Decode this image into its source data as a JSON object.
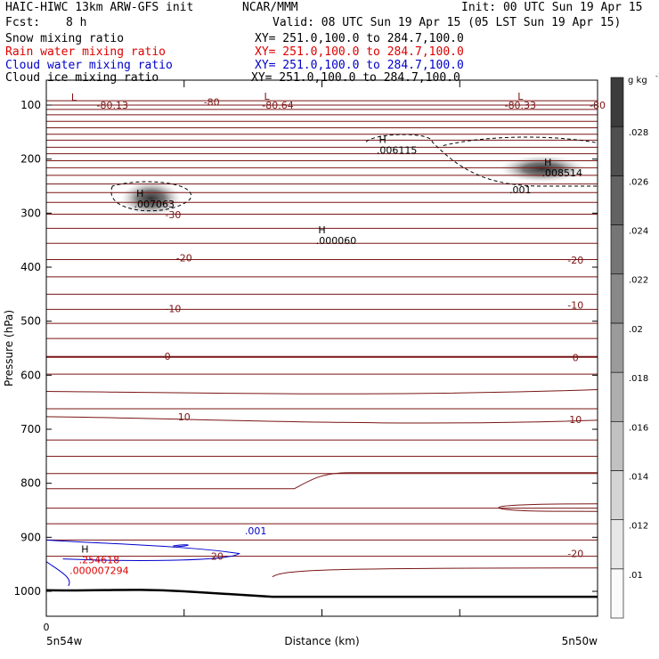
{
  "header": {
    "model": "HAIC-HIWC 13km ARW-GFS init",
    "org": "NCAR/MMM",
    "init": "Init: 00 UTC Sun 19 Apr 15",
    "fcst_label": "Fcst:",
    "fcst_value": "8 h",
    "valid": "Valid: 08 UTC Sun 19 Apr 15 (05 LST Sun 19 Apr 15)"
  },
  "fields": [
    {
      "name": "Snow mixing ratio",
      "xy": "XY= 251.0,100.0 to 284.7,100.0",
      "color": "#000000"
    },
    {
      "name": "Rain water mixing ratio",
      "xy": "XY= 251.0,100.0 to 284.7,100.0",
      "color": "#dd0000"
    },
    {
      "name": "Cloud water mixing ratio",
      "xy": "XY= 251.0,100.0 to 284.7,100.0",
      "color": "#0000cc"
    },
    {
      "name": "Cloud ice mixing ratio",
      "xy": "XY= 251.0,100.0 to 284.7,100.0",
      "color": "#000000"
    }
  ],
  "chart_data": {
    "type": "contour cross-section",
    "ylabel": "Pressure (hPa)",
    "xlabel": "Distance (km)",
    "ylim": [
      1000,
      100
    ],
    "yticks": [
      100,
      200,
      300,
      400,
      500,
      600,
      700,
      800,
      900,
      1000
    ],
    "xticks": [
      "0"
    ],
    "x_start_label": "5n54w",
    "x_end_label": "5n50w",
    "temperature_labels": [
      {
        "text": "-80.13",
        "x": 0.12,
        "p": 100
      },
      {
        "text": "-80.64",
        "x": 0.42,
        "p": 100
      },
      {
        "text": "-80.33",
        "x": 0.86,
        "p": 100
      },
      {
        "text": "-80",
        "x": 0.3,
        "p": 94
      },
      {
        "text": "-80",
        "x": 1.0,
        "p": 100
      },
      {
        "text": "-30",
        "x": 0.23,
        "p": 303
      },
      {
        "text": "-20",
        "x": 0.25,
        "p": 383
      },
      {
        "text": "-20",
        "x": 0.96,
        "p": 387
      },
      {
        "text": "-10",
        "x": 0.23,
        "p": 477
      },
      {
        "text": "-10",
        "x": 0.96,
        "p": 470
      },
      {
        "text": "0",
        "x": 0.22,
        "p": 565
      },
      {
        "text": "0",
        "x": 0.96,
        "p": 567
      },
      {
        "text": "10",
        "x": 0.25,
        "p": 677
      },
      {
        "text": "10",
        "x": 0.96,
        "p": 682
      },
      {
        "text": "20",
        "x": 0.31,
        "p": 935
      },
      {
        "text": "-20",
        "x": 0.96,
        "p": 930
      }
    ],
    "extrema": [
      {
        "mark": "L",
        "x": 0.05,
        "p": 92
      },
      {
        "mark": "L",
        "x": 0.4,
        "p": 90
      },
      {
        "mark": "L",
        "x": 0.86,
        "p": 90
      },
      {
        "mark": "H",
        "value": ".006115",
        "x": 0.61,
        "p": 170
      },
      {
        "mark": "H",
        "value": ".008514",
        "x": 0.91,
        "p": 212
      },
      {
        "mark": "H",
        "value": ".007063",
        "x": 0.17,
        "p": 270
      },
      {
        "mark": "H",
        "value": ".000060",
        "x": 0.5,
        "p": 337
      },
      {
        "mark": "H",
        "value": ".254618",
        "x": 0.07,
        "p": 928,
        "color": "#dd0000",
        "sub": ".000007294"
      }
    ],
    "cloud_water_label": {
      "text": ".001",
      "x": 0.36,
      "p": 888
    },
    "ice_label": {
      "text": ".001",
      "x": 0.84,
      "p": 257
    },
    "colorbar": {
      "unit": "g kg",
      "unit_exp": "-1",
      "ticks": [
        ".01",
        ".012",
        ".014",
        ".016",
        ".018",
        ".02",
        ".022",
        ".024",
        ".026",
        ".028"
      ]
    }
  }
}
